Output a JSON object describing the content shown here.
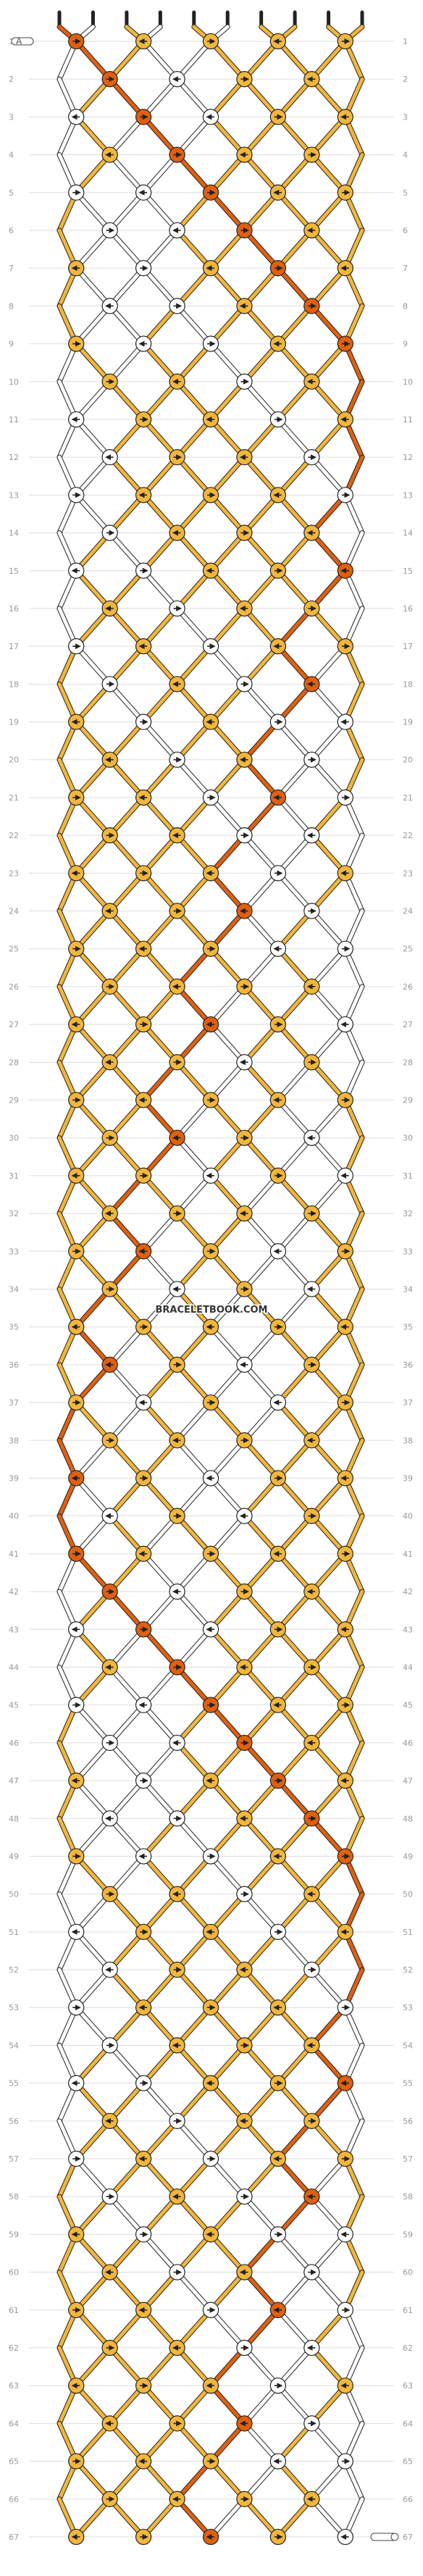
{
  "watermark": "BRACELETBOOK.COM",
  "start_label": "A",
  "colors": {
    "A": "#ffffff",
    "B": "#f2b63c",
    "C": "#e06010",
    "background": "#ffffff",
    "guide": "#dddddd",
    "outline": "#222222",
    "rownum": "#999999"
  },
  "pattern": {
    "strings": [
      "C",
      "A",
      "B",
      "A",
      "B",
      "A",
      "B",
      "B",
      "B",
      "B"
    ],
    "rows": 67,
    "row_numbers": [
      1,
      2,
      3,
      4,
      5,
      6,
      7,
      8,
      9,
      10,
      11,
      12,
      13,
      14,
      15,
      16,
      17,
      18,
      19,
      20,
      21,
      22,
      23,
      24,
      25,
      26,
      27,
      28,
      29,
      30,
      31,
      32,
      33,
      34,
      35,
      36,
      37,
      38,
      39,
      40,
      41,
      42,
      43,
      44,
      45,
      46,
      47,
      48,
      49,
      50,
      51,
      52,
      53,
      54,
      55,
      56,
      57,
      58,
      59,
      60,
      61,
      62,
      63,
      64,
      65,
      66,
      67
    ],
    "knot_icons": {
      "f": "arrow-right-icon",
      "b": "arrow-left-icon",
      "fb": "arrow-right-back-icon",
      "bf": "arrow-left-forward-icon"
    }
  }
}
